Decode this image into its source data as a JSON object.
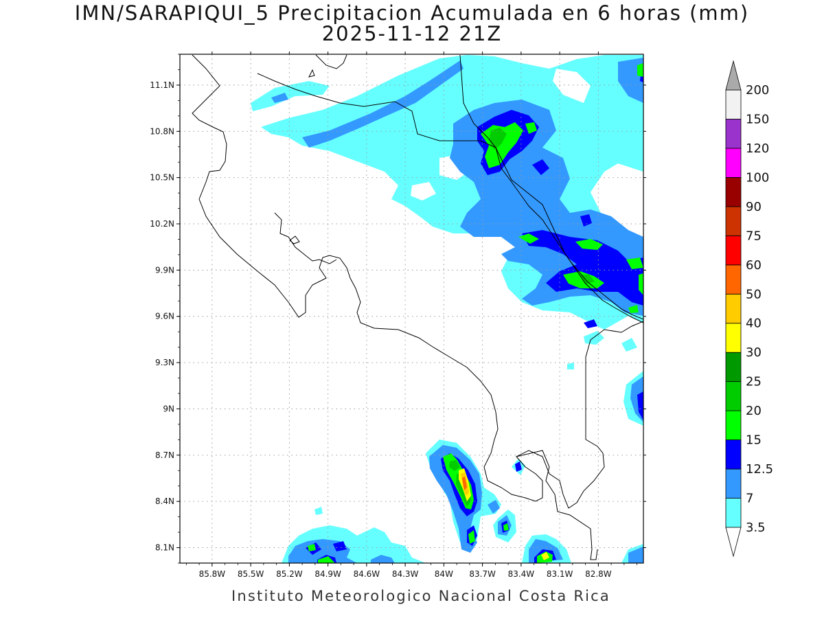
{
  "title": {
    "line1": "IMN/SARAPIQUI_5 Precipitacion Acumulada en 6 horas (mm)",
    "line2": "2025-11-12 21Z"
  },
  "footer": "Instituto Meteorologico Nacional Costa Rica",
  "map": {
    "lon_range": [
      -86.05,
      -82.45
    ],
    "lat_range": [
      8.0,
      11.3
    ],
    "x_ticks": [
      {
        "value": -85.8,
        "label": "85.8W"
      },
      {
        "value": -85.5,
        "label": "85.5W"
      },
      {
        "value": -85.2,
        "label": "85.2W"
      },
      {
        "value": -84.9,
        "label": "84.9W"
      },
      {
        "value": -84.6,
        "label": "84.6W"
      },
      {
        "value": -84.3,
        "label": "84.3W"
      },
      {
        "value": -84.0,
        "label": "84W"
      },
      {
        "value": -83.7,
        "label": "83.7W"
      },
      {
        "value": -83.4,
        "label": "83.4W"
      },
      {
        "value": -83.1,
        "label": "83.1W"
      },
      {
        "value": -82.8,
        "label": "82.8W"
      }
    ],
    "y_ticks": [
      {
        "value": 8.1,
        "label": "8.1N"
      },
      {
        "value": 8.4,
        "label": "8.4N"
      },
      {
        "value": 8.7,
        "label": "8.7N"
      },
      {
        "value": 9.0,
        "label": "9N"
      },
      {
        "value": 9.3,
        "label": "9.3N"
      },
      {
        "value": 9.6,
        "label": "9.6N"
      },
      {
        "value": 9.9,
        "label": "9.9N"
      },
      {
        "value": 10.2,
        "label": "10.2N"
      },
      {
        "value": 10.5,
        "label": "10.5N"
      },
      {
        "value": 10.8,
        "label": "10.8N"
      },
      {
        "value": 11.1,
        "label": "11.1N"
      }
    ],
    "grid": "dotted"
  },
  "colorbar": {
    "unit": "mm",
    "levels": [
      {
        "label": "3.5",
        "color": "#66ffff"
      },
      {
        "label": "7",
        "color": "#3399ff"
      },
      {
        "label": "12.5",
        "color": "#0000ff"
      },
      {
        "label": "15",
        "color": "#00ff00"
      },
      {
        "label": "20",
        "color": "#00cc00"
      },
      {
        "label": "25",
        "color": "#009900"
      },
      {
        "label": "30",
        "color": "#ffff00"
      },
      {
        "label": "40",
        "color": "#ffcc00"
      },
      {
        "label": "50",
        "color": "#ff6600"
      },
      {
        "label": "60",
        "color": "#ff0000"
      },
      {
        "label": "75",
        "color": "#cc3300"
      },
      {
        "label": "90",
        "color": "#990000"
      },
      {
        "label": "100",
        "color": "#ff00ff"
      },
      {
        "label": "120",
        "color": "#9933cc"
      },
      {
        "label": "150",
        "color": "#f2f2f2"
      },
      {
        "label": "200",
        "color": "#aaaaaa"
      }
    ]
  }
}
